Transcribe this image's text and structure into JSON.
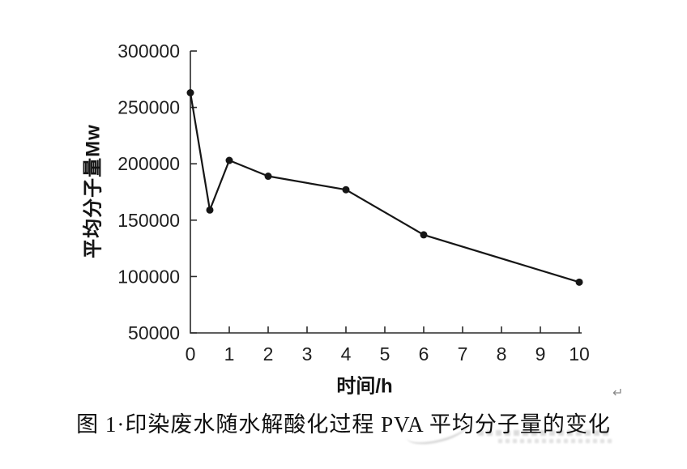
{
  "figure": {
    "caption": "图 1·印染废水随水解酸化过程 PVA 平均分子量的变化",
    "return_mark": "↵"
  },
  "chart_data": {
    "type": "line",
    "title": "",
    "xlabel": "时间/h",
    "ylabel": "平均分子量Mw",
    "x": [
      0,
      0.5,
      1,
      2,
      4,
      6,
      10
    ],
    "y": [
      263000,
      159000,
      203000,
      189000,
      177000,
      137000,
      95000
    ],
    "xlim": [
      0,
      10
    ],
    "ylim": [
      50000,
      300000
    ],
    "x_ticks": [
      0,
      1,
      2,
      3,
      4,
      5,
      6,
      7,
      8,
      9,
      10
    ],
    "y_ticks": [
      50000,
      100000,
      150000,
      200000,
      250000,
      300000
    ],
    "grid": false,
    "legend": false,
    "marker": "circle",
    "line_color": "#161616",
    "axis_color": "#2a2a2a",
    "tick_style": "inside"
  }
}
